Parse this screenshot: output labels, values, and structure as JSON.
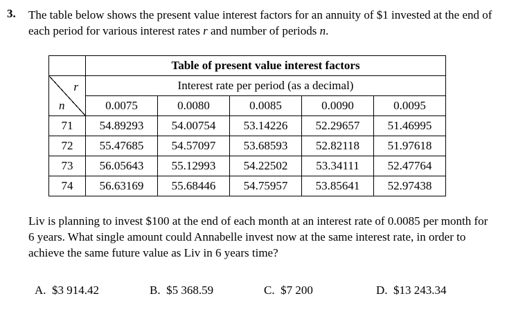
{
  "question": {
    "number": "3.",
    "stem_part1": "The table below shows the present value interest factors for an annuity of $1 invested at the end of each period for various interest rates ",
    "stem_var_r": "r",
    "stem_part2": " and number of periods ",
    "stem_var_n": "n",
    "stem_part3": "."
  },
  "table": {
    "title": "Table of present value interest factors",
    "rate_header": "Interest rate per period (as a decimal)",
    "corner_r": "r",
    "corner_n": "n",
    "rates": [
      "0.0075",
      "0.0080",
      "0.0085",
      "0.0090",
      "0.0095"
    ],
    "rows": [
      {
        "n": "71",
        "values": [
          "54.89293",
          "54.00754",
          "53.14226",
          "52.29657",
          "51.46995"
        ]
      },
      {
        "n": "72",
        "values": [
          "55.47685",
          "54.57097",
          "53.68593",
          "52.82118",
          "51.97618"
        ]
      },
      {
        "n": "73",
        "values": [
          "56.05643",
          "55.12993",
          "54.22502",
          "53.34111",
          "52.47764"
        ]
      },
      {
        "n": "74",
        "values": [
          "56.63169",
          "55.68446",
          "54.75957",
          "53.85641",
          "52.97438"
        ]
      }
    ]
  },
  "prompt": "Liv is planning to invest $100 at the end of each month at an interest rate of 0.0085 per month for 6 years. What single amount could Annabelle invest now at the same interest rate, in order to achieve the same future value as Liv in 6 years time?",
  "choices": [
    {
      "label": "A.",
      "value": "$3 914.42"
    },
    {
      "label": "B.",
      "value": "$5 368.59"
    },
    {
      "label": "C.",
      "value": "$7 200"
    },
    {
      "label": "D.",
      "value": "$13 243.34"
    }
  ]
}
